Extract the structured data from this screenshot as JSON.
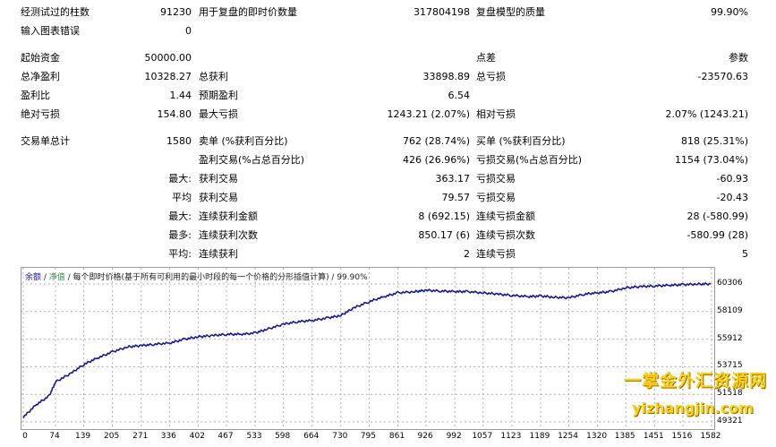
{
  "stats": {
    "row1": {
      "bars_label": "经测试过的柱数",
      "bars_value": "91230",
      "ticks_label": "用于复盘的即时价数量",
      "ticks_value": "317804198",
      "quality_label": "复盘模型的质量",
      "quality_value": "99.90%"
    },
    "row2": {
      "errors_label": "输入图表错误",
      "errors_value": "0"
    },
    "row3": {
      "initial_label": "起始资金",
      "initial_value": "50000.00",
      "spread_label": "点差",
      "spread_value": "参数"
    },
    "row4": {
      "net_label": "总净盈利",
      "net_value": "10328.27",
      "gross_profit_label": "总获利",
      "gross_profit_value": "33898.89",
      "gross_loss_label": "总亏损",
      "gross_loss_value": "-23570.63"
    },
    "row5": {
      "pf_label": "盈利比",
      "pf_value": "1.44",
      "expected_label": "预期盈利",
      "expected_value": "6.54"
    },
    "row6": {
      "abs_dd_label": "绝对亏损",
      "abs_dd_value": "154.80",
      "max_dd_label": "最大亏损",
      "max_dd_value": "1243.21 (2.07%)",
      "rel_dd_label": "相对亏损",
      "rel_dd_value": "2.07% (1243.21)"
    },
    "row7": {
      "total_label": "交易单总计",
      "total_value": "1580",
      "short_label": "卖单 (%获利百分比)",
      "short_value": "762 (28.74%)",
      "long_label": "买单 (%获利百分比)",
      "long_value": "818 (25.31%)"
    },
    "row8": {
      "profit_trades_label": "盈利交易(%占总百分比)",
      "profit_trades_value": "426 (26.96%)",
      "loss_trades_label": "亏损交易(%占总百分比)",
      "loss_trades_value": "1154 (73.04%)"
    },
    "row9": {
      "prefix": "最大:",
      "profit_label": "获利交易",
      "profit_value": "363.17",
      "loss_label": "亏损交易",
      "loss_value": "-60.93"
    },
    "row10": {
      "prefix": "平均",
      "profit_label": "获利交易",
      "profit_value": "79.57",
      "loss_label": "亏损交易",
      "loss_value": "-20.43"
    },
    "row11": {
      "prefix": "最大:",
      "profit_label": "连续获利金额",
      "profit_value": "8 (692.15)",
      "loss_label": "连续亏损金额",
      "loss_value": "28 (-580.99)"
    },
    "row12": {
      "prefix": "最多:",
      "profit_label": "连续获利次数",
      "profit_value": "850.17 (6)",
      "loss_label": "连续亏损次数",
      "loss_value": "-580.99 (28)"
    },
    "row13": {
      "prefix": "平均:",
      "profit_label": "连续获利",
      "profit_value": "2",
      "loss_label": "连续亏损",
      "loss_value": "5"
    }
  },
  "chart_legend": {
    "balance": "余额",
    "sep1": " / ",
    "equity": "净值",
    "rest": " / 每个即时价格(基于所有可利用的最小时段的每一个价格的分形插值计算) / 99.90%"
  },
  "colors": {
    "line": "#1a1a8c",
    "grid": "#b0b0b0",
    "watermark": "#ffd21a"
  },
  "watermark": {
    "line1": "一掌金外汇资源网",
    "line2": "yizhangjin.com"
  },
  "chart_data": {
    "type": "line",
    "y_ticks": [
      "60306",
      "58109",
      "55912",
      "53715",
      "51518",
      "49321"
    ],
    "x_ticks": [
      "0",
      "74",
      "139",
      "205",
      "271",
      "336",
      "402",
      "467",
      "533",
      "598",
      "664",
      "730",
      "795",
      "861",
      "926",
      "992",
      "1057",
      "1123",
      "1189",
      "1254",
      "1320",
      "1385",
      "1451",
      "1516",
      "1582"
    ],
    "ylim": [
      49321,
      60306
    ],
    "xlim": [
      0,
      1580
    ],
    "series": [
      {
        "x": [
          0,
          30,
          60,
          74,
          110,
          139,
          170,
          205,
          240,
          271,
          300,
          336,
          370,
          402,
          435,
          467,
          500,
          533,
          560,
          598,
          630,
          664,
          700,
          730,
          760,
          795,
          830,
          861,
          900,
          926,
          960,
          992,
          1020,
          1057,
          1090,
          1123,
          1160,
          1189,
          1220,
          1254,
          1290,
          1320,
          1350,
          1385,
          1420,
          1451,
          1485,
          1516,
          1550,
          1580
        ],
        "y": [
          49700,
          50700,
          51400,
          52500,
          53200,
          53900,
          54400,
          54900,
          55300,
          55400,
          55500,
          55600,
          55900,
          56100,
          56200,
          56300,
          56300,
          56400,
          56700,
          57100,
          57300,
          57400,
          57600,
          57800,
          58400,
          58900,
          59300,
          59600,
          59700,
          59800,
          59750,
          59700,
          59700,
          59600,
          59500,
          59400,
          59300,
          59350,
          59250,
          59200,
          59500,
          59600,
          59700,
          60000,
          60100,
          60150,
          60200,
          60250,
          60300,
          60306
        ]
      }
    ]
  }
}
